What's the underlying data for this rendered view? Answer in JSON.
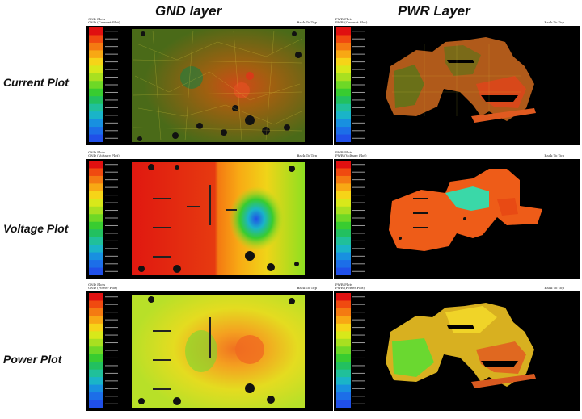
{
  "columns": {
    "gnd": "GND layer",
    "pwr": "PWR Layer"
  },
  "rows": {
    "current": "Current Plot",
    "voltage": "Voltage Plot",
    "power": "Power Plot"
  },
  "panels": {
    "gnd_current": {
      "title": "GND Plots",
      "subtitle": "GND (Current Plot)",
      "back": "Back To Top"
    },
    "pwr_current": {
      "title": "PWR Plots",
      "subtitle": "PWR (Current Plot)",
      "back": "Back To Top"
    },
    "gnd_voltage": {
      "title": "GND Plots",
      "subtitle": "GND (Voltage Plot)",
      "back": "Back To Top"
    },
    "pwr_voltage": {
      "title": "PWR Plots",
      "subtitle": "PWR (Voltage Plot)",
      "back": "Back To Top"
    },
    "gnd_power": {
      "title": "GND Plots",
      "subtitle": "GND (Power Plot)",
      "back": "Back To Top"
    },
    "pwr_power": {
      "title": "PWR Plots",
      "subtitle": "PWR (Power Plot)",
      "back": "Back To Top"
    }
  },
  "colors": {
    "scale": [
      "#e01010",
      "#f04a10",
      "#f47a12",
      "#f8a814",
      "#f6d418",
      "#d8e81a",
      "#a8e020",
      "#6ed826",
      "#38cc30",
      "#22c060",
      "#20c09a",
      "#1ab4c8",
      "#1890e0",
      "#1c6ee8",
      "#2050e8"
    ],
    "plot_bg": "#000000"
  }
}
